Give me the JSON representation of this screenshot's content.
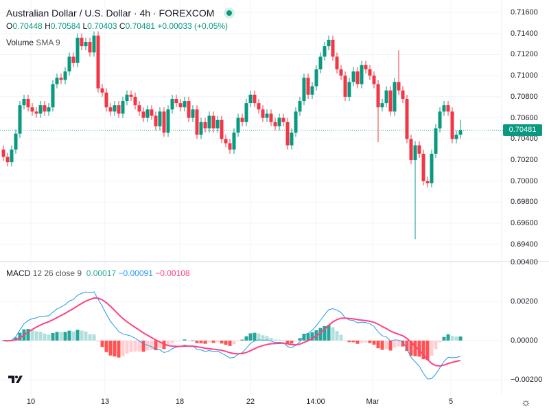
{
  "header": {
    "title": "Australian Dollar / U.S. Dollar · 4h · FOREXCOM",
    "ohlc": {
      "o_label": "O",
      "o": "0.70448",
      "h_label": "H",
      "h": "0.70584",
      "l_label": "L",
      "l": "0.70403",
      "c_label": "C",
      "c": "0.70481",
      "change": "+0.00033 (+0.05%)"
    },
    "volume_label": "Volume",
    "volume_sma": "SMA 9"
  },
  "macd_legend": {
    "label": "MACD",
    "params": "12 26 close 9",
    "hist": "0.00017",
    "macd": "−0.00091",
    "signal": "−0.00108"
  },
  "price_axis": [
    "0.71600",
    "0.71400",
    "0.71200",
    "0.71000",
    "0.70800",
    "0.70600",
    "0.70400",
    "0.70200",
    "0.70000",
    "0.69800",
    "0.69600",
    "0.69400"
  ],
  "macd_axis": [
    "0.00400",
    "0.00200",
    "0.00000",
    "−0.00200"
  ],
  "last_price": "0.70481",
  "time_axis": [
    "10",
    "13",
    "18",
    "22",
    "14:00",
    "Mar",
    "5"
  ],
  "colors": {
    "up": "#089981",
    "down": "#f23645",
    "macd": "#2196f3",
    "signal": "#ff4081"
  },
  "chart_data": {
    "type": "candlestick",
    "price_range": [
      0.694,
      0.716
    ],
    "first_open": 0.703,
    "closes": [
      0.7023,
      0.7018,
      0.703,
      0.7045,
      0.7072,
      0.7078,
      0.707,
      0.7066,
      0.7064,
      0.7072,
      0.7066,
      0.707,
      0.7092,
      0.7098,
      0.7096,
      0.7104,
      0.7118,
      0.7112,
      0.7136,
      0.7128,
      0.7132,
      0.7122,
      0.7138,
      0.7088,
      0.7084,
      0.707,
      0.7066,
      0.7072,
      0.7064,
      0.7076,
      0.7082,
      0.708,
      0.7072,
      0.7066,
      0.706,
      0.7068,
      0.7062,
      0.7052,
      0.7066,
      0.7046,
      0.7068,
      0.7078,
      0.7074,
      0.707,
      0.7076,
      0.706,
      0.7068,
      0.7044,
      0.7056,
      0.705,
      0.7062,
      0.705,
      0.7058,
      0.704,
      0.7036,
      0.703,
      0.7046,
      0.706,
      0.7056,
      0.7074,
      0.7082,
      0.7074,
      0.7068,
      0.706,
      0.7064,
      0.7056,
      0.7052,
      0.706,
      0.7056,
      0.7034,
      0.7046,
      0.7066,
      0.7076,
      0.7098,
      0.7082,
      0.709,
      0.7106,
      0.7118,
      0.7128,
      0.7134,
      0.7118,
      0.7106,
      0.71,
      0.708,
      0.7094,
      0.7104,
      0.7092,
      0.711,
      0.7106,
      0.71,
      0.7092,
      0.707,
      0.7074,
      0.7086,
      0.7066,
      0.7094,
      0.7086,
      0.7078,
      0.704,
      0.702,
      0.7034,
      0.7026,
      0.7,
      0.6998,
      0.7026,
      0.705,
      0.7066,
      0.7072,
      0.7066,
      0.704,
      0.7044,
      0.70481
    ],
    "wick_extremes": {
      "100": {
        "low": 0.6945
      },
      "91": {
        "low": 0.7037
      },
      "96": {
        "high": 0.7124
      },
      "111": {
        "high": 0.70584,
        "low": 0.70403
      }
    },
    "macd_range": [
      -0.0025,
      0.004
    ]
  }
}
